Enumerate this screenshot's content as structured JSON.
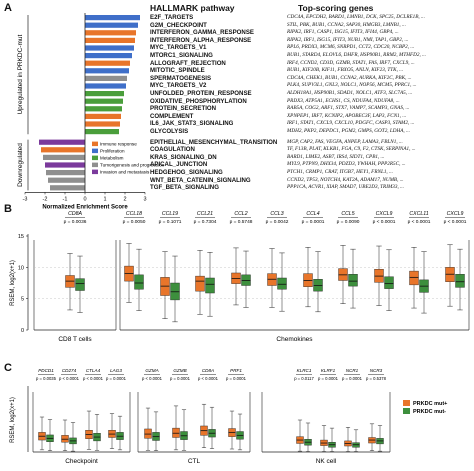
{
  "panel_a": {
    "letter": "A",
    "header_pathway": "HALLMARK pathway",
    "header_genes": "Top-scoring genes",
    "label_up": "Upregulated in PRKDC-mut",
    "label_down": "Downregulated",
    "xlabel": "Normalized Enrichment Score",
    "x_ticks": [
      "-3",
      "-2",
      "-1",
      "0",
      "1",
      "2",
      "3"
    ],
    "legend": [
      {
        "label": "Immune response",
        "color": "#e8752a"
      },
      {
        "label": "Proliferation",
        "color": "#3f6fc9"
      },
      {
        "label": "Metabolism",
        "color": "#4a9e3b"
      },
      {
        "label": "Tumorigenesis and progression",
        "color": "#8f8f8f"
      },
      {
        "label": "Invasion and metastasis",
        "color": "#7b3a9c"
      }
    ]
  },
  "panel_b": {
    "letter": "B",
    "ylabel": "RSEM, log2(x+1)",
    "y_ticks": [
      "0",
      "5",
      "10",
      "15"
    ],
    "group1": "CD8 T cells",
    "group2": "Chemokines"
  },
  "panel_c": {
    "letter": "C",
    "ylabel": "RSEM, log2(x+1)",
    "group1": "Checkpoint",
    "group2": "CTL",
    "group3": "NK cell",
    "legend": [
      {
        "label": "PRKDC mut+",
        "color": "#e8752a"
      },
      {
        "label": "PRKDC mut-",
        "color": "#3d8f3d"
      }
    ]
  },
  "chart_data": [
    {
      "type": "bar",
      "title": "HALLMARK pathway",
      "xlabel": "Normalized Enrichment Score",
      "xlim": [
        -3,
        3
      ],
      "categories": [
        "E2F_TARGETS",
        "G2M_CHECKPOINT",
        "INTERFERON_GAMMA_RESPONSE",
        "INTERFERON_ALPHA_RESPONSE",
        "MYC_TARGETS_V1",
        "MTORC1_SIGNALING",
        "ALLOGRAFT_REJECTION",
        "MITOTIC_SPINDLE",
        "SPERMATOGENESIS",
        "MYC_TARGETS_V2",
        "UNFOLDED_PROTEIN_RESPONSE",
        "OXIDATIVE_PHOSPHORYLATION",
        "PROTEIN_SECRETION",
        "COMPLEMENT",
        "IL6_JAK_STAT3_SIGNALING",
        "GLYCOLYSIS",
        "EPITHELIAL_MESENCHYMAL_TRANSITION",
        "COAGULATION",
        "KRAS_SIGNALING_DN",
        "APICAL_JUNCTION",
        "HEDGEHOG_SIGNALING",
        "WNT_BETA_CATENIN_SIGNALING",
        "TGF_BETA_SIGNALING"
      ],
      "values": [
        2.75,
        2.65,
        2.55,
        2.5,
        2.45,
        2.35,
        2.25,
        2.2,
        2.1,
        2.05,
        1.95,
        1.9,
        1.85,
        1.8,
        1.75,
        1.7,
        -2.3,
        -2.2,
        -2.1,
        -2.0,
        -1.95,
        -1.85,
        -1.75
      ],
      "categories_group": [
        "Proliferation",
        "Proliferation",
        "Immune response",
        "Immune response",
        "Proliferation",
        "Proliferation",
        "Immune response",
        "Proliferation",
        "Tumorigenesis and progression",
        "Proliferation",
        "Metabolism",
        "Metabolism",
        "Metabolism",
        "Immune response",
        "Immune response",
        "Metabolism",
        "Invasion and metastasis",
        "Immune response",
        "Tumorigenesis and progression",
        "Invasion and metastasis",
        "Tumorigenesis and progression",
        "Tumorigenesis and progression",
        "Tumorigenesis and progression"
      ],
      "genes": [
        "CDC4A, EPCDH2, BARD1, LMNB1, DCK, SPC25, DCLRE1B, ...",
        "STIL, PBK, BUB1, CCNA2, SAP30, HMGB3, LMNB1, ...",
        "RIPK2, IRF1, CASP1, ISG15, IFIT3, IFI44, GBP4, ...",
        "RIPK2, IRF1, ISG15, IFIT3, NUB1, NMI, TAP1, GBP2, ...",
        "RPL6, PRDX3, MCM6, SNRPD1, CCT2, CDC20, NCBP2, ...",
        "BUB1, STARD4, ELOVL6, DHFR, HSP90B1, RRM2, MTHFD2, ...",
        "IRF4, CCND2, CD3D, GZMB, STAT1, FAS, IRF7, CXCL9, ...",
        "BUB1, KIF20B, KIF11, FBXO5, ANLN, KIF23, TTK, ...",
        "CDC4A, CHEK1, BUB1, CCNA2, AURKA, KIF2C, PBK, ...",
        "PLK4, SUPV3L1, GNL3, NOLC1, NOP56, MCM5, PPRC1, ...",
        "ALDH18A1, HSP90B1, SDAD1, NOLC1, ATF3, SLC7A5, ...",
        "PRDX3, ATP5A1, ECHS1, CS, NDUFA4, NDUFA8, ...",
        "RAB5A, COG2, ARF1, STX7, VAMP7, SCAMP3, GNAS, ...",
        "XPNPEP1, IRF7, KCNIP2, APOBEC3F, LAP3, FCN1, ...",
        "IRF1, STAT1, CXCL9, CXCL10, PDGFC, CASP3, STAM2, ...",
        "MDH2, PKP2, DEPDC1, PGM2, GMPS, GOT2, LDHA, ...",
        "MGP, CAP2, FAS, VEGFA, ANPEP, LAMA3, FBLN1, ...",
        "TF, F13B, PLAT, KLKB1, FGA, C9, F2, CTSK, SERPINA1, ...",
        "BARD1, LIME2, ASB7, IRS4, SIDT1, CPB1, ...",
        "MYL9, PTPN9, DHX34, PDZD3, YWHAH, PPP2R5C, ...",
        "PTCH1, CRMP1, CRAT, ITGB7, HEY1, FRNL1, ...",
        "CCND2, TP53, NOTCH4, KAT2A, ADAM17, NUMB, ...",
        "PPP1CA, ACVR1, XIAP, SMAD7, UBE2D3, TRIM33, ..."
      ]
    },
    {
      "type": "box",
      "title": "",
      "ylabel": "RSEM, log2(x+1)",
      "ylim": [
        0,
        15
      ],
      "categories": [
        "CD8A",
        "CCL18",
        "CCL19",
        "CCL21",
        "CCL2",
        "CCL3",
        "CCL4",
        "CCL5",
        "CXCL9",
        "CXCL11",
        "CXCL9"
      ],
      "pvalues": [
        "p = 0.0036",
        "p = 0.0050",
        "p = 0.1071",
        "p = 0.7304",
        "p = 0.5748",
        "p = 0.0042",
        "p = 0.0001",
        "p = 0.0090",
        "p < 0.0001",
        "p < 0.0001",
        "p < 0.0001"
      ],
      "series": [
        {
          "name": "PRKDC mut+",
          "median": [
            7.8,
            9.0,
            7.0,
            7.8,
            8.2,
            8.1,
            7.9,
            8.8,
            8.6,
            8.4,
            8.9
          ],
          "q1": [
            6.8,
            7.8,
            5.5,
            6.2,
            7.4,
            7.1,
            6.9,
            7.9,
            7.6,
            7.2,
            7.7
          ],
          "q3": [
            8.7,
            10.2,
            8.4,
            8.6,
            9.1,
            9.0,
            9.0,
            9.8,
            9.7,
            9.4,
            10.0
          ],
          "min": [
            3.2,
            4.4,
            1.8,
            2.5,
            4.0,
            3.6,
            3.7,
            4.2,
            3.9,
            3.5,
            3.8
          ],
          "max": [
            12.2,
            13.8,
            12.5,
            12.7,
            13.1,
            13.0,
            13.2,
            13.5,
            13.4,
            13.2,
            13.6
          ]
        },
        {
          "name": "PRKDC mut-",
          "median": [
            7.4,
            7.5,
            6.1,
            7.3,
            7.9,
            7.3,
            7.1,
            7.8,
            7.4,
            7.0,
            7.7
          ],
          "q1": [
            6.3,
            6.5,
            4.8,
            5.9,
            7.1,
            6.5,
            6.2,
            7.0,
            6.6,
            6.0,
            6.8
          ],
          "q3": [
            8.2,
            8.8,
            7.5,
            8.3,
            8.8,
            8.3,
            8.1,
            8.9,
            8.5,
            8.0,
            8.9
          ],
          "min": [
            2.8,
            3.1,
            1.3,
            2.2,
            3.6,
            3.0,
            2.9,
            3.5,
            3.1,
            2.7,
            3.2
          ],
          "max": [
            11.8,
            12.9,
            11.8,
            12.4,
            12.6,
            12.3,
            12.5,
            12.9,
            12.8,
            12.5,
            12.9
          ]
        }
      ]
    },
    {
      "type": "box",
      "title": "",
      "ylabel": "RSEM, log2(x+1)",
      "ylim": [
        0,
        15
      ],
      "categories": [
        "PDCD1",
        "CD274",
        "CTLA4",
        "LAG3",
        "GZMA",
        "GZMB",
        "CD8A",
        "PRF1",
        "KLRC1",
        "KLRF1",
        "NCR1",
        "NCR3"
      ],
      "pvalues": [
        "p = 0.0035",
        "p < 0.0001",
        "p < 0.0001",
        "p = 0.0001",
        "p < 0.0001",
        "p = 0.0001",
        "p < 0.0001",
        "p = 0.0001",
        "p = 0.0117",
        "p = 0.0001",
        "p = 0.0001",
        "p = 0.5378"
      ],
      "series": [
        {
          "name": "PRKDC mut+",
          "median": [
            3.7,
            3.0,
            4.1,
            4.2,
            4.2,
            4.4,
            5.0,
            4.6,
            2.8,
            2.1,
            2.0,
            2.8
          ],
          "q1": [
            2.8,
            2.3,
            3.1,
            3.4,
            3.2,
            3.4,
            3.9,
            3.6,
            2.0,
            1.5,
            1.4,
            2.1
          ],
          "q3": [
            4.6,
            3.9,
            5.1,
            5.1,
            5.4,
            5.6,
            6.1,
            5.5,
            3.6,
            2.8,
            2.6,
            3.4
          ],
          "min": [
            0.5,
            0.3,
            0.6,
            0.8,
            0.4,
            0.5,
            1.0,
            0.7,
            0.2,
            0.1,
            0.1,
            0.3
          ],
          "max": [
            8.2,
            7.5,
            9.6,
            9.0,
            10.3,
            10.8,
            11.2,
            9.6,
            7.5,
            6.2,
            5.8,
            6.6
          ]
        },
        {
          "name": "PRKDC mut-",
          "median": [
            3.2,
            2.6,
            3.5,
            3.7,
            3.6,
            3.8,
            4.4,
            3.9,
            2.3,
            1.7,
            1.7,
            2.6
          ],
          "q1": [
            2.4,
            1.9,
            2.6,
            2.9,
            2.7,
            2.9,
            3.5,
            3.0,
            1.6,
            1.1,
            1.1,
            1.9
          ],
          "q3": [
            4.0,
            3.3,
            4.4,
            4.6,
            4.6,
            4.8,
            5.3,
            4.8,
            3.0,
            2.3,
            2.2,
            3.2
          ],
          "min": [
            0.3,
            0.2,
            0.4,
            0.5,
            0.3,
            0.4,
            0.8,
            0.5,
            0.1,
            0.1,
            0.1,
            0.2
          ],
          "max": [
            7.6,
            6.9,
            8.8,
            8.4,
            9.4,
            9.9,
            10.5,
            8.9,
            6.8,
            5.6,
            5.2,
            6.2
          ]
        }
      ]
    }
  ]
}
